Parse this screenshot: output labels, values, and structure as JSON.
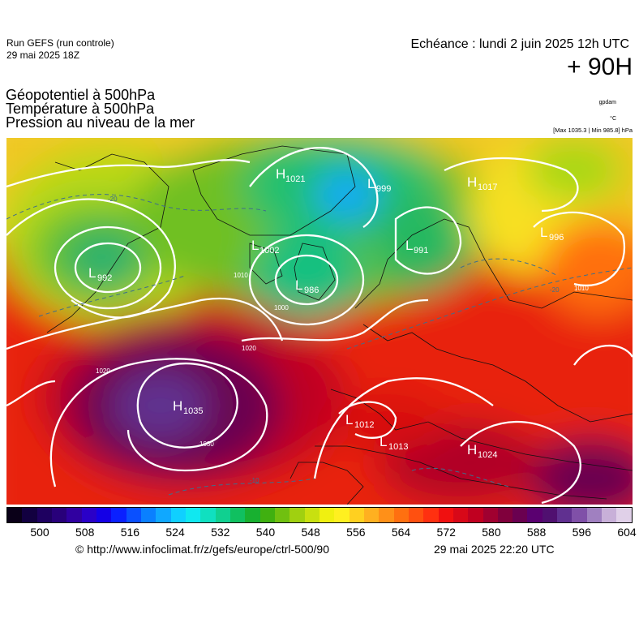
{
  "header": {
    "run_title": "Run GEFS (run controle)",
    "run_date": "29 mai 2025 18Z",
    "echeance": "Echéance : lundi 2 juin 2025 12h UTC",
    "lead_time": "+ 90H",
    "fields": [
      "Géopotentiel à 500hPa",
      "Température à 500hPa",
      "Pression au niveau de la mer"
    ],
    "unit_geopotential": "gpdam",
    "unit_temperature": "°C",
    "minmax": "[Max 1035.3 | Min 985.8] hPa"
  },
  "map": {
    "pressure_centers": [
      {
        "type": "H",
        "value": "1021"
      },
      {
        "type": "L",
        "value": "999"
      },
      {
        "type": "H",
        "value": "1017"
      },
      {
        "type": "L",
        "value": "1002"
      },
      {
        "type": "L",
        "value": "991"
      },
      {
        "type": "L",
        "value": "996"
      },
      {
        "type": "L",
        "value": "992"
      },
      {
        "type": "L",
        "value": "986"
      },
      {
        "type": "H",
        "value": "1035"
      },
      {
        "type": "L",
        "value": "1012"
      },
      {
        "type": "L",
        "value": "1013"
      },
      {
        "type": "H",
        "value": "1024"
      }
    ],
    "isobar_labels": [
      "1000",
      "1010",
      "1020",
      "1030"
    ],
    "temperature_labels": [
      "-20",
      "-10"
    ]
  },
  "colorbar": {
    "colors": [
      "#0a0018",
      "#120040",
      "#1e0060",
      "#28007a",
      "#3000a0",
      "#2a00c8",
      "#1400e6",
      "#0a20ff",
      "#0a50ff",
      "#0a80ff",
      "#10a8ff",
      "#10d0ff",
      "#10e8f0",
      "#10e0c0",
      "#10d090",
      "#10c060",
      "#18b030",
      "#40b010",
      "#70c010",
      "#a0d010",
      "#c8e010",
      "#f0f010",
      "#fff020",
      "#ffd020",
      "#ffb020",
      "#ff9018",
      "#ff7010",
      "#ff5010",
      "#ff3010",
      "#f01010",
      "#d80818",
      "#c00020",
      "#a00030",
      "#80003c",
      "#6a0050",
      "#5a0070",
      "#501070",
      "#603090",
      "#8050a8",
      "#a080c0",
      "#c8b0d8",
      "#e0d0e8"
    ],
    "labels": [
      "500",
      "508",
      "516",
      "524",
      "532",
      "540",
      "548",
      "556",
      "564",
      "572",
      "580",
      "588",
      "596",
      "604"
    ]
  },
  "footer": {
    "credit": "© http://www.infoclimat.fr/z/gefs/europe/ctrl-500/90",
    "created": "29 mai 2025 22:20 UTC"
  }
}
